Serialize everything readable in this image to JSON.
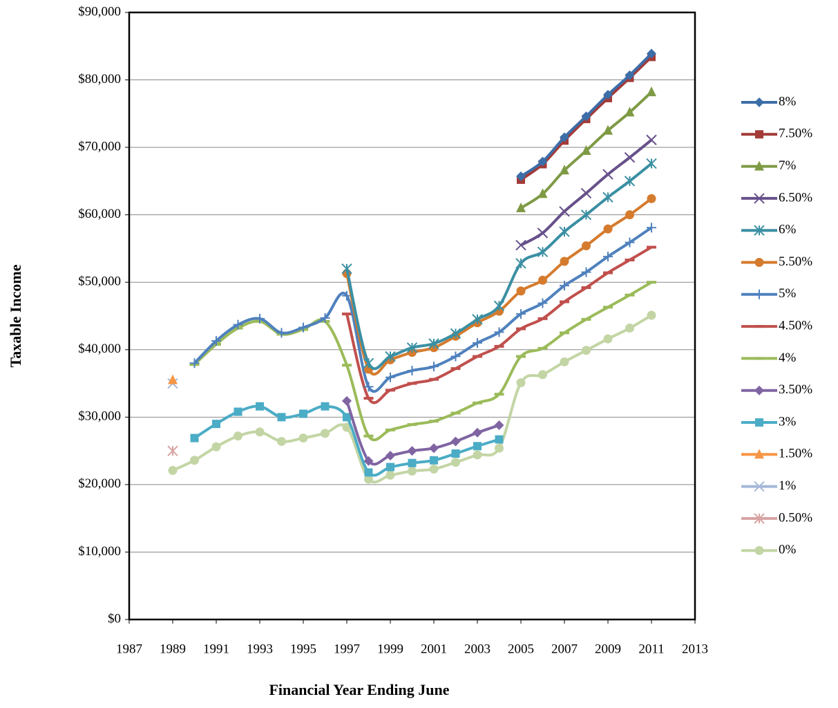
{
  "chart_data": {
    "type": "line",
    "y_label": "Taxable Income",
    "x_label": "Financial Year Ending June",
    "x": [
      1989,
      1990,
      1991,
      1992,
      1993,
      1994,
      1995,
      1996,
      1997,
      1998,
      1999,
      2000,
      2001,
      2002,
      2003,
      2004,
      2005,
      2006,
      2007,
      2008,
      2009,
      2010,
      2011
    ],
    "xlim": [
      1987,
      2013
    ],
    "xticks": [
      1987,
      1989,
      1991,
      1993,
      1995,
      1997,
      1999,
      2001,
      2003,
      2005,
      2007,
      2009,
      2011,
      2013
    ],
    "ylim": [
      0,
      90000
    ],
    "yticks": [
      {
        "value": 0,
        "label": "$0"
      },
      {
        "value": 10000,
        "label": "$10,000"
      },
      {
        "value": 20000,
        "label": "$20,000"
      },
      {
        "value": 30000,
        "label": "$30,000"
      },
      {
        "value": 40000,
        "label": "$40,000"
      },
      {
        "value": 50000,
        "label": "$50,000"
      },
      {
        "value": 60000,
        "label": "$60,000"
      },
      {
        "value": 70000,
        "label": "$70,000"
      },
      {
        "value": 80000,
        "label": "$80,000"
      },
      {
        "value": 90000,
        "label": "$90,000"
      }
    ],
    "grid": true,
    "legend": "right",
    "series": [
      {
        "name": "8%",
        "color": "#3c6ea8",
        "marker": "diamond",
        "values": [
          null,
          null,
          null,
          null,
          null,
          null,
          null,
          null,
          null,
          null,
          null,
          null,
          null,
          null,
          null,
          null,
          65700,
          67900,
          71500,
          74600,
          77800,
          80700,
          83900
        ]
      },
      {
        "name": "7.50%",
        "color": "#a33b38",
        "marker": "square",
        "values": [
          null,
          null,
          null,
          null,
          null,
          null,
          null,
          null,
          null,
          null,
          null,
          null,
          null,
          null,
          null,
          null,
          65200,
          67500,
          71000,
          74200,
          77300,
          80300,
          83400
        ]
      },
      {
        "name": "7%",
        "color": "#7e9a45",
        "marker": "triangle",
        "values": [
          null,
          null,
          null,
          null,
          null,
          null,
          null,
          null,
          null,
          null,
          null,
          null,
          null,
          null,
          null,
          null,
          61000,
          63100,
          66600,
          69500,
          72500,
          75200,
          78200
        ]
      },
      {
        "name": "6.50%",
        "color": "#67508a",
        "marker": "x",
        "values": [
          null,
          null,
          null,
          null,
          null,
          null,
          null,
          null,
          null,
          null,
          null,
          null,
          null,
          null,
          null,
          null,
          55500,
          57300,
          60500,
          63200,
          66000,
          68500,
          71100
        ]
      },
      {
        "name": "6%",
        "color": "#3b8fa3",
        "marker": "star",
        "values": [
          null,
          null,
          null,
          null,
          null,
          null,
          null,
          null,
          52000,
          38000,
          39000,
          40300,
          40900,
          42400,
          44500,
          46500,
          52800,
          54500,
          57500,
          60000,
          62600,
          65000,
          67600
        ]
      },
      {
        "name": "5.50%",
        "color": "#d57b2e",
        "marker": "circle",
        "values": [
          null,
          null,
          null,
          null,
          null,
          null,
          null,
          null,
          51300,
          37100,
          38500,
          39600,
          40300,
          42000,
          44000,
          45700,
          48700,
          50300,
          53100,
          55400,
          57900,
          60000,
          62400
        ]
      },
      {
        "name": "5%",
        "color": "#4f81bd",
        "marker": "plus",
        "values": [
          null,
          38000,
          41300,
          43700,
          44600,
          42500,
          43300,
          44700,
          48000,
          34500,
          35900,
          36900,
          37500,
          39000,
          41000,
          42600,
          45300,
          46900,
          49500,
          51500,
          53800,
          55900,
          58100
        ]
      },
      {
        "name": "4.50%",
        "color": "#c0504d",
        "marker": "dash",
        "values": [
          null,
          null,
          null,
          null,
          null,
          null,
          null,
          null,
          45300,
          32800,
          34000,
          35000,
          35600,
          37200,
          39000,
          40500,
          43100,
          44600,
          47100,
          49200,
          51400,
          53300,
          55200
        ]
      },
      {
        "name": "4%",
        "color": "#9bbb59",
        "marker": "dash",
        "values": [
          null,
          37800,
          40800,
          43200,
          44200,
          42300,
          43000,
          44200,
          37700,
          27200,
          28100,
          28900,
          29400,
          30600,
          32100,
          33400,
          39000,
          40200,
          42500,
          44500,
          46300,
          48100,
          50000
        ]
      },
      {
        "name": "3.50%",
        "color": "#8064a2",
        "marker": "diamond",
        "values": [
          null,
          null,
          null,
          null,
          null,
          null,
          null,
          null,
          32400,
          23500,
          24300,
          25000,
          25400,
          26400,
          27700,
          28800,
          null,
          null,
          null,
          null,
          null,
          null,
          null
        ]
      },
      {
        "name": "3%",
        "color": "#4bacc6",
        "marker": "square",
        "values": [
          null,
          26900,
          29000,
          30800,
          31600,
          30000,
          30500,
          31600,
          30000,
          21800,
          22600,
          23200,
          23600,
          24600,
          25700,
          26700,
          null,
          null,
          null,
          null,
          null,
          null,
          null
        ]
      },
      {
        "name": "1.50%",
        "color": "#f79646",
        "marker": "triangle",
        "values": [
          35500,
          null,
          null,
          null,
          null,
          null,
          null,
          null,
          null,
          null,
          null,
          null,
          null,
          null,
          null,
          null,
          null,
          null,
          null,
          null,
          null,
          null,
          null
        ]
      },
      {
        "name": "1%",
        "color": "#a5b8d8",
        "marker": "x",
        "values": [
          35000,
          null,
          null,
          null,
          null,
          null,
          null,
          null,
          null,
          null,
          null,
          null,
          null,
          null,
          null,
          null,
          null,
          null,
          null,
          null,
          null,
          null,
          null
        ]
      },
      {
        "name": "0.50%",
        "color": "#d6a3a2",
        "marker": "star",
        "values": [
          25000,
          null,
          null,
          null,
          null,
          null,
          null,
          null,
          null,
          null,
          null,
          null,
          null,
          null,
          null,
          null,
          null,
          null,
          null,
          null,
          null,
          null,
          null
        ]
      },
      {
        "name": "0%",
        "color": "#c3d5a4",
        "marker": "circle",
        "values": [
          22100,
          23600,
          25600,
          27200,
          27800,
          26400,
          26900,
          27600,
          28500,
          20800,
          21400,
          22000,
          22300,
          23300,
          24400,
          25400,
          35100,
          36300,
          38200,
          39900,
          41600,
          43200,
          45100
        ]
      }
    ]
  }
}
